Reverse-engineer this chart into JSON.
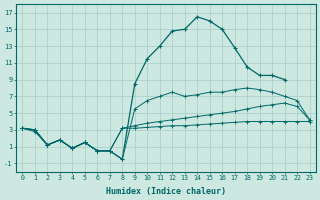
{
  "bg_color": "#cce8e0",
  "grid_color": "#a8ccc8",
  "line_color": "#006868",
  "xlabel": "Humidex (Indice chaleur)",
  "xlim": [
    -0.5,
    23.5
  ],
  "ylim": [
    -2,
    18
  ],
  "yticks": [
    -1,
    1,
    3,
    5,
    7,
    9,
    11,
    13,
    15,
    17
  ],
  "xticks": [
    0,
    1,
    2,
    3,
    4,
    5,
    6,
    7,
    8,
    9,
    10,
    11,
    12,
    13,
    14,
    15,
    16,
    17,
    18,
    19,
    20,
    21,
    22,
    23
  ],
  "lines": [
    [
      3.2,
      3.0,
      1.2,
      1.8,
      0.8,
      1.5,
      0.5,
      0.5,
      -0.5,
      8.5,
      11.5,
      13.0,
      14.8,
      15.0,
      16.5,
      16.0,
      15.0,
      12.8,
      10.5,
      9.5,
      9.5,
      9.0,
      null,
      null
    ],
    [
      3.2,
      3.0,
      1.2,
      1.8,
      0.8,
      1.5,
      0.5,
      0.5,
      -0.5,
      5.5,
      6.5,
      7.0,
      7.5,
      7.0,
      7.2,
      7.5,
      7.5,
      7.8,
      8.0,
      7.8,
      7.5,
      7.0,
      6.5,
      4.2
    ],
    [
      3.2,
      3.0,
      1.2,
      1.8,
      0.8,
      1.5,
      0.5,
      0.5,
      3.2,
      3.5,
      3.8,
      4.0,
      4.2,
      4.4,
      4.6,
      4.8,
      5.0,
      5.2,
      5.5,
      5.8,
      6.0,
      6.2,
      5.8,
      4.2
    ],
    [
      3.2,
      2.8,
      1.2,
      1.8,
      0.8,
      1.5,
      0.5,
      0.5,
      3.2,
      3.2,
      3.3,
      3.4,
      3.5,
      3.5,
      3.6,
      3.7,
      3.8,
      3.9,
      4.0,
      4.0,
      4.0,
      4.0,
      4.0,
      4.0
    ]
  ]
}
